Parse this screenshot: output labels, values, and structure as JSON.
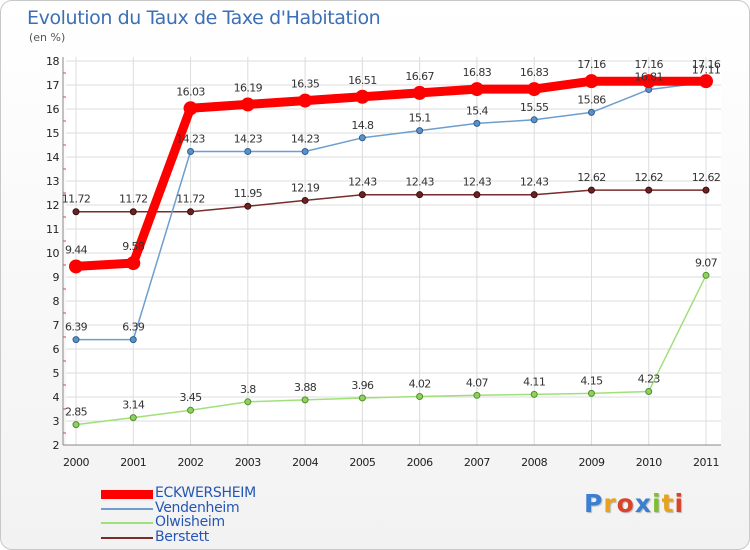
{
  "title": "Evolution du Taux de Taxe d'Habitation",
  "subtitle": "(en %)",
  "logo": {
    "text": "Proxiti",
    "letter_colors": [
      "#3b7fd0",
      "#e8a21b",
      "#d9432a",
      "#3b7fd0",
      "#7fbf2f",
      "#e8a21b",
      "#d9432a"
    ]
  },
  "chart_data": {
    "type": "line",
    "x": [
      "2000",
      "2001",
      "2002",
      "2003",
      "2004",
      "2005",
      "2006",
      "2007",
      "2008",
      "2009",
      "2010",
      "2011"
    ],
    "ylim": [
      2,
      18
    ],
    "yticks": [
      "2",
      "3",
      "4",
      "5",
      "6",
      "7",
      "8",
      "9",
      "10",
      "11",
      "12",
      "13",
      "14",
      "15",
      "16",
      "17",
      "18"
    ],
    "grid": true,
    "legend_position": "bottom-left",
    "series": [
      {
        "name": "ECKWERSHEIM",
        "color": "#ff0000",
        "values": [
          9.44,
          9.58,
          16.03,
          16.19,
          16.35,
          16.51,
          16.67,
          16.83,
          16.83,
          17.16,
          17.16,
          17.16
        ],
        "labels": [
          "9.44",
          "9.58",
          "16.03",
          "16.19",
          "16.35",
          "16.51",
          "16.67",
          "16.83",
          "16.83",
          "17.16",
          "17.16",
          "17.16"
        ]
      },
      {
        "name": "Vendenheim",
        "color": "#6d9ecf",
        "values": [
          6.39,
          6.39,
          14.23,
          14.23,
          14.23,
          14.8,
          15.1,
          15.4,
          15.55,
          15.86,
          16.81,
          17.11
        ],
        "labels": [
          "6.39",
          "6.39",
          "14.23",
          "14.23",
          "14.23",
          "14.8",
          "15.1",
          "15.4",
          "15.55",
          "15.86",
          "16.81",
          "17.11"
        ]
      },
      {
        "name": "Olwisheim",
        "color": "#9fe07a",
        "values": [
          2.85,
          3.14,
          3.45,
          3.8,
          3.88,
          3.96,
          4.02,
          4.07,
          4.11,
          4.15,
          4.23,
          9.07
        ],
        "labels": [
          "2.85",
          "3.14",
          "3.45",
          "3.8",
          "3.88",
          "3.96",
          "4.02",
          "4.07",
          "4.11",
          "4.15",
          "4.23",
          "9.07"
        ]
      },
      {
        "name": "Berstett",
        "color": "#7a2b2b",
        "values": [
          11.72,
          11.72,
          11.72,
          11.95,
          12.19,
          12.43,
          12.43,
          12.43,
          12.43,
          12.62,
          12.62,
          12.62
        ],
        "labels": [
          "11.72",
          "11.72",
          "11.72",
          "11.95",
          "12.19",
          "12.43",
          "12.43",
          "12.43",
          "12.43",
          "12.62",
          "12.62",
          "12.62"
        ]
      }
    ]
  }
}
